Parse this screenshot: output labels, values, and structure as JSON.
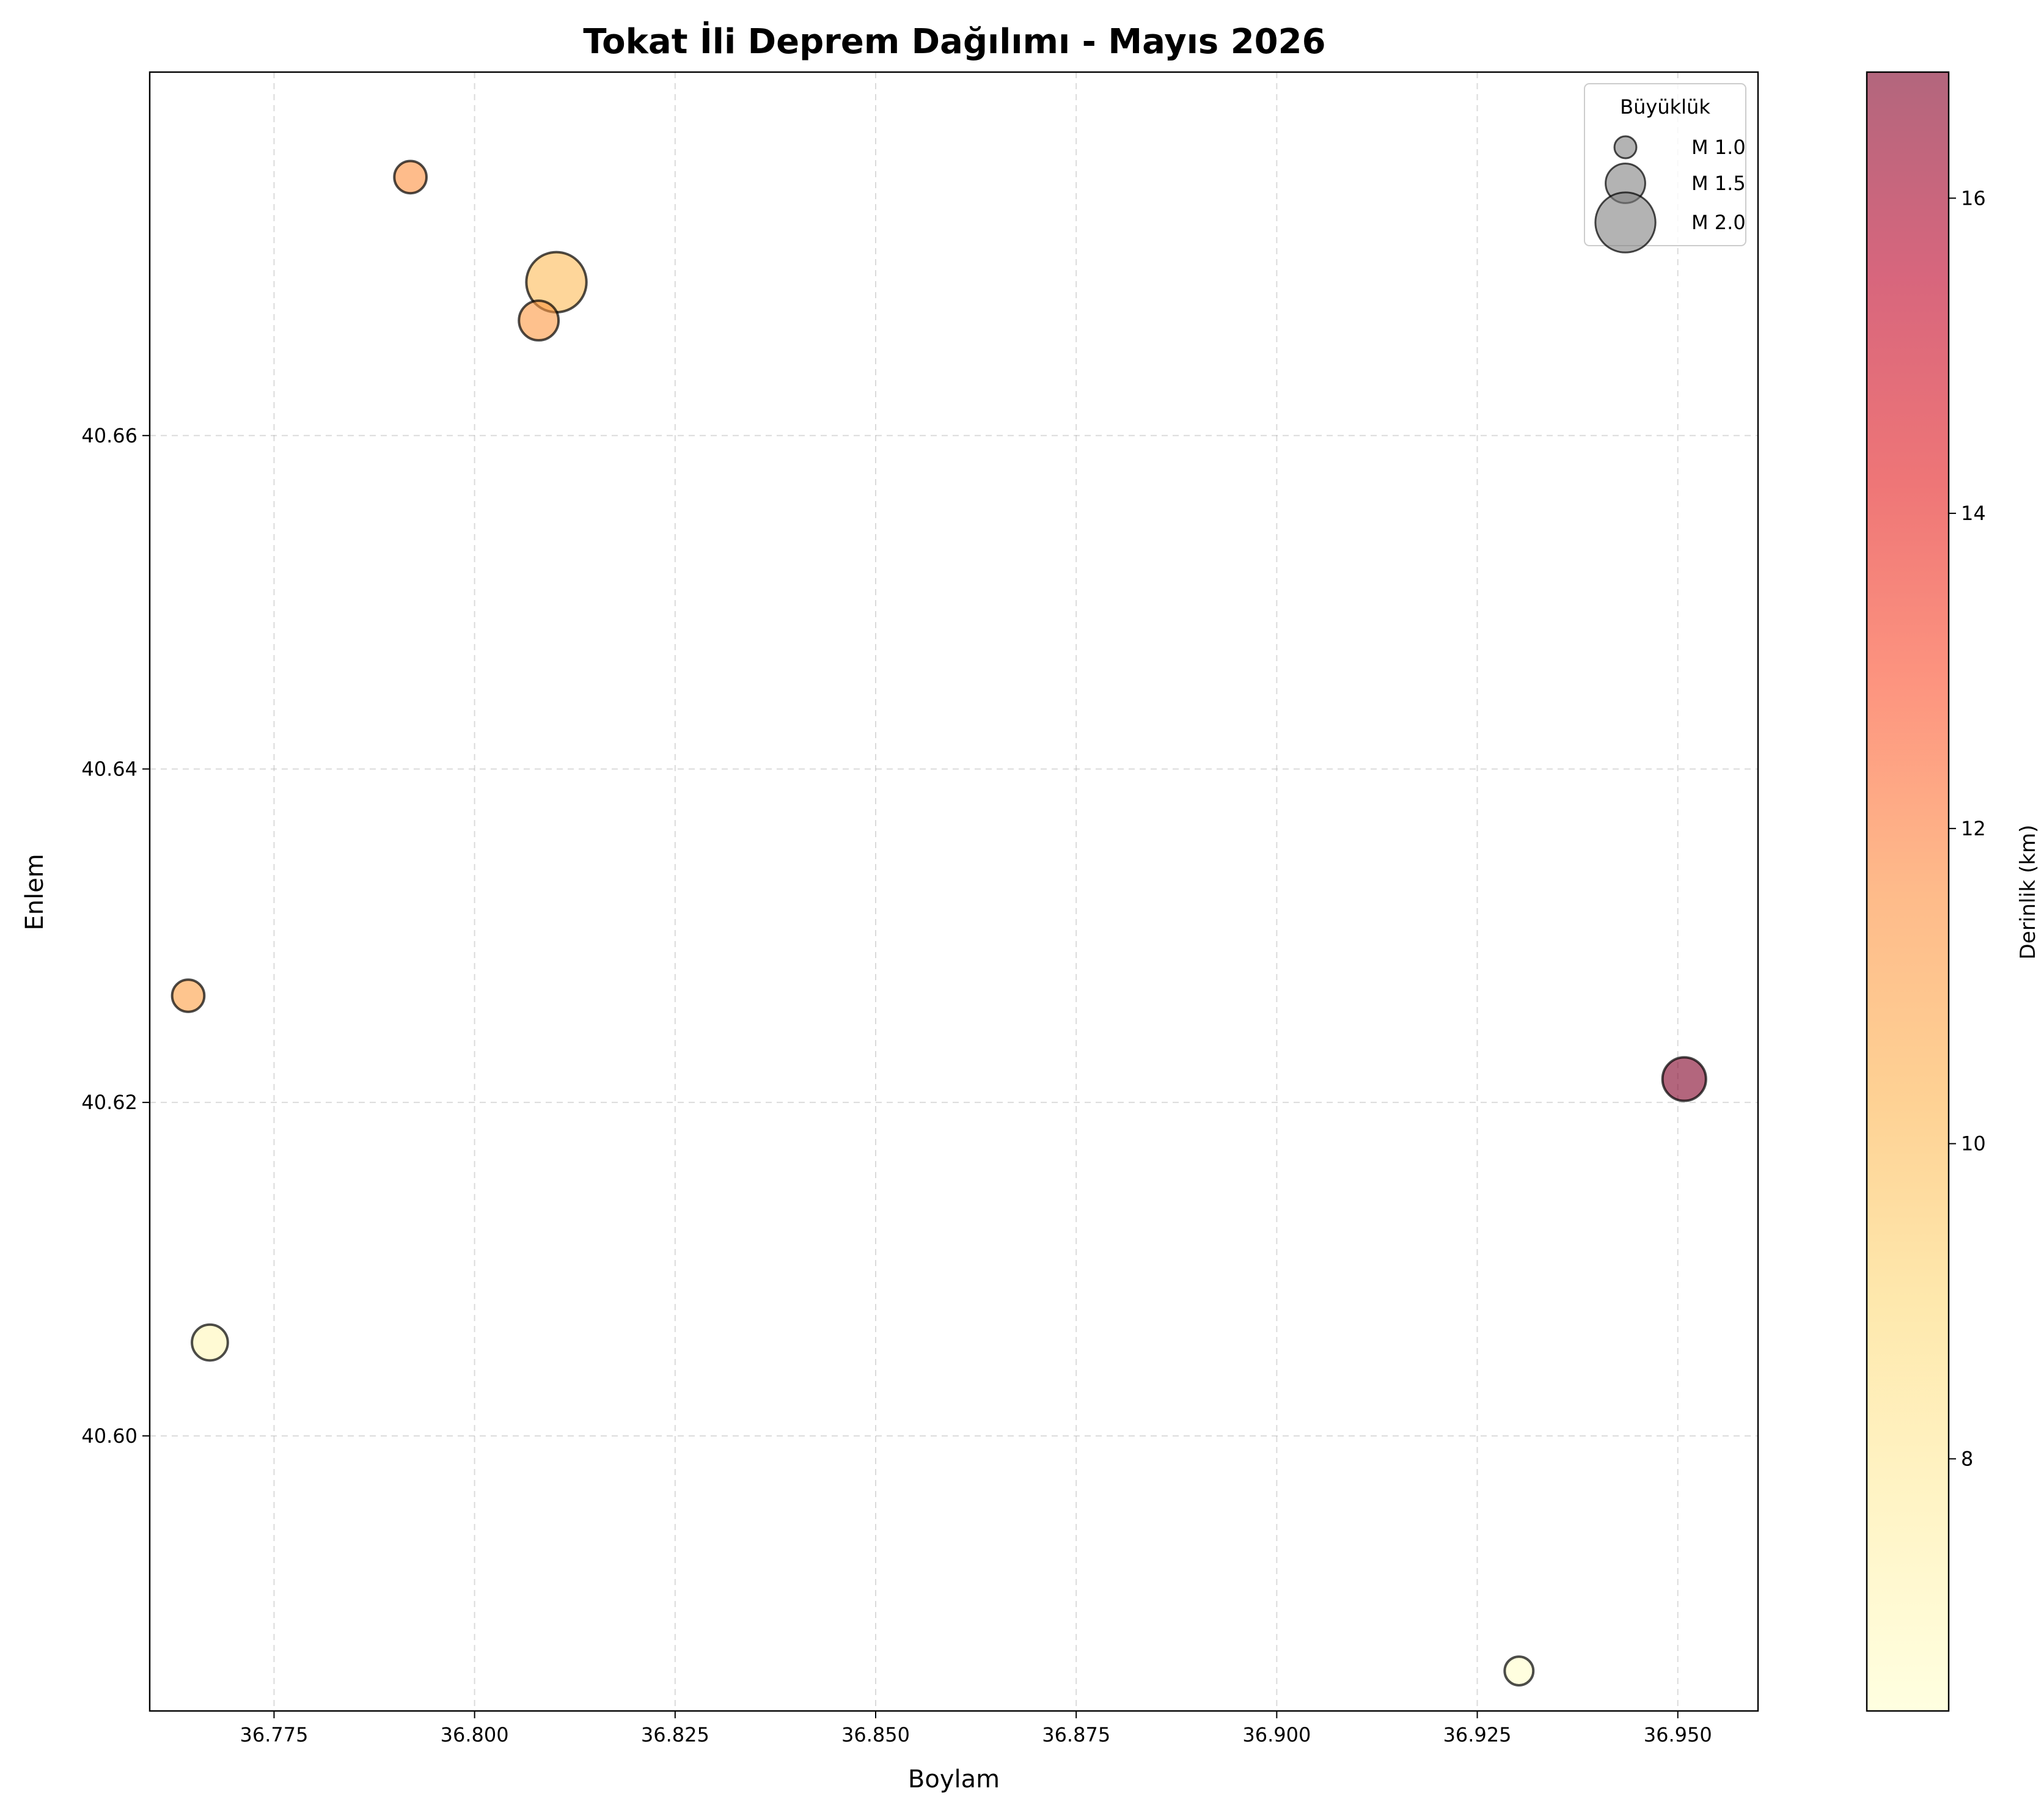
{
  "chart_data": {
    "type": "scatter",
    "title": "Tokat İli Deprem Dağılımı - Mayıs 2026",
    "xlabel": "Boylam",
    "ylabel": "Enlem",
    "xlim": [
      36.7595,
      36.96
    ],
    "ylim": [
      40.5835,
      40.6818
    ],
    "x_ticks": [
      36.775,
      36.8,
      36.825,
      36.85,
      36.875,
      36.9,
      36.925,
      36.95
    ],
    "x_tick_labels": [
      "36.775",
      "36.800",
      "36.825",
      "36.850",
      "36.875",
      "36.900",
      "36.925",
      "36.950"
    ],
    "y_ticks": [
      40.6,
      40.62,
      40.64,
      40.66
    ],
    "y_tick_labels": [
      "40.60",
      "40.62",
      "40.64",
      "40.66"
    ],
    "grid": true,
    "points": [
      {
        "lon": 36.792,
        "lat": 40.6755,
        "magnitude": 1.3,
        "depth": 11.5
      },
      {
        "lon": 36.8102,
        "lat": 40.6692,
        "magnitude": 2.0,
        "depth": 10.0
      },
      {
        "lon": 36.808,
        "lat": 40.6669,
        "magnitude": 1.5,
        "depth": 11.2
      },
      {
        "lon": 36.7643,
        "lat": 40.6264,
        "magnitude": 1.3,
        "depth": 11.0
      },
      {
        "lon": 36.9508,
        "lat": 40.6214,
        "magnitude": 1.6,
        "depth": 16.8
      },
      {
        "lon": 36.767,
        "lat": 40.6056,
        "magnitude": 1.4,
        "depth": 7.0
      },
      {
        "lon": 36.9302,
        "lat": 40.5859,
        "magnitude": 1.2,
        "depth": 6.5
      }
    ],
    "colorbar": {
      "label": "Derinlik (km)",
      "min": 6.4,
      "max": 16.8,
      "ticks": [
        8,
        10,
        12,
        14,
        16
      ],
      "tick_labels": [
        "8",
        "10",
        "12",
        "14",
        "16"
      ],
      "colormap": "YlOrRd",
      "stops": [
        "#ffffcc",
        "#ffeda0",
        "#fed976",
        "#feb24c",
        "#fd8d3c",
        "#fc4e2a",
        "#e31a1c",
        "#bd0026",
        "#800026"
      ],
      "alpha": 0.6
    },
    "legend": {
      "title": "Büyüklük",
      "placement": "top-right",
      "entries": [
        {
          "label": "M 1.0",
          "magnitude": 1.0
        },
        {
          "label": "M 1.5",
          "magnitude": 1.5
        },
        {
          "label": "M 2.0",
          "magnitude": 2.0
        }
      ],
      "marker_color": "#808080"
    }
  }
}
